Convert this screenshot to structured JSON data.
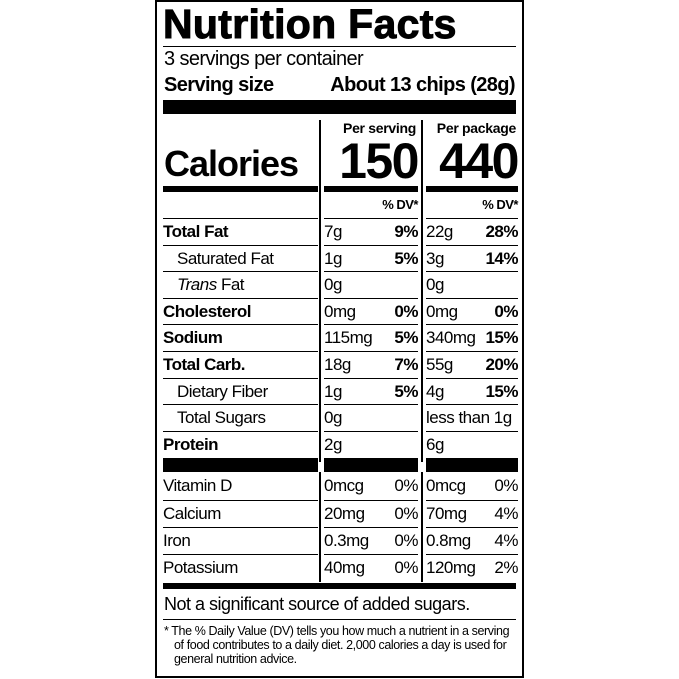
{
  "title": "Nutrition Facts",
  "servings_per_container": "3 servings per container",
  "serving_size_label": "Serving size",
  "serving_size_value": "About 13 chips (28g)",
  "calories_label": "Calories",
  "columns": [
    {
      "header": "Per serving",
      "calories": "150"
    },
    {
      "header": "Per package",
      "calories": "440"
    }
  ],
  "dv_header": "% DV*",
  "nutrients": [
    {
      "name": "Total Fat",
      "bold": true,
      "indent": false,
      "italic_prefix": "",
      "serving": "7g",
      "serving_dv": "9%",
      "package": "22g",
      "package_dv": "28%"
    },
    {
      "name": "Saturated Fat",
      "bold": false,
      "indent": true,
      "serving": "1g",
      "serving_dv": "5%",
      "package": "3g",
      "package_dv": "14%"
    },
    {
      "name": "Fat",
      "italic_prefix": "Trans",
      "bold": false,
      "indent": true,
      "serving": "0g",
      "serving_dv": "",
      "package": "0g",
      "package_dv": ""
    },
    {
      "name": "Cholesterol",
      "bold": true,
      "indent": false,
      "serving": "0mg",
      "serving_dv": "0%",
      "package": "0mg",
      "package_dv": "0%"
    },
    {
      "name": "Sodium",
      "bold": true,
      "indent": false,
      "serving": "115mg",
      "serving_dv": "5%",
      "package": "340mg",
      "package_dv": "15%"
    },
    {
      "name": "Total Carb.",
      "bold": true,
      "indent": false,
      "serving": "18g",
      "serving_dv": "7%",
      "package": "55g",
      "package_dv": "20%"
    },
    {
      "name": "Dietary Fiber",
      "bold": false,
      "indent": true,
      "serving": "1g",
      "serving_dv": "5%",
      "package": "4g",
      "package_dv": "15%"
    },
    {
      "name": "Total Sugars",
      "bold": false,
      "indent": true,
      "serving": "0g",
      "serving_dv": "",
      "package": "less than 1g",
      "package_dv": ""
    },
    {
      "name": "Protein",
      "bold": true,
      "indent": false,
      "serving": "2g",
      "serving_dv": "",
      "package": "6g",
      "package_dv": ""
    }
  ],
  "vitamins": [
    {
      "name": "Vitamin D",
      "serving": "0mcg",
      "serving_dv": "0%",
      "package": "0mcg",
      "package_dv": "0%"
    },
    {
      "name": "Calcium",
      "serving": "20mg",
      "serving_dv": "0%",
      "package": "70mg",
      "package_dv": "4%"
    },
    {
      "name": "Iron",
      "serving": "0.3mg",
      "serving_dv": "0%",
      "package": "0.8mg",
      "package_dv": "4%"
    },
    {
      "name": "Potassium",
      "serving": "40mg",
      "serving_dv": "0%",
      "package": "120mg",
      "package_dv": "2%"
    }
  ],
  "added_sugars_note": "Not a significant source of added sugars.",
  "footnote": "* The % Daily Value (DV) tells you how much a nutrient in a serving of food contributes to a daily diet. 2,000 calories a day is used for general nutrition advice."
}
